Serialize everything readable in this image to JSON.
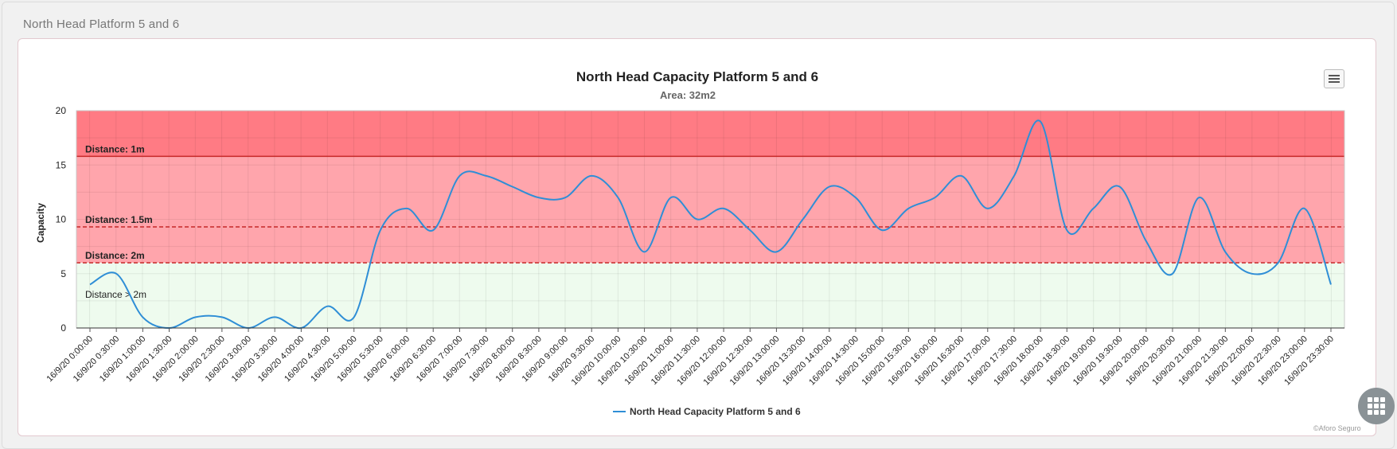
{
  "section_title": "North Head Platform 5 and 6",
  "credit": "©Aforo Seguro",
  "icons": {
    "menu": "hamburger-menu-icon",
    "apps": "grid-apps-icon"
  },
  "colors": {
    "line": "#2f8ed6",
    "zone_above_1m": "#ff7b84",
    "zone_1m_to_2m": "#ffa5ac",
    "zone_safe": "#eefbee",
    "threshold_line": "#c62828"
  },
  "chart_data": {
    "type": "line",
    "title": "North Head Capacity Platform 5 and 6",
    "subtitle": "Area: 32m2",
    "ylabel": "Capacity",
    "xlabel": "",
    "ylim": [
      0,
      20
    ],
    "yticks": [
      0,
      5,
      10,
      15,
      20
    ],
    "grid": true,
    "legend": {
      "placement": "bottom-center"
    },
    "categories": [
      "16/9/20 0:00:00",
      "16/9/20 0:30:00",
      "16/9/20 1:00:00",
      "16/9/20 1:30:00",
      "16/9/20 2:00:00",
      "16/9/20 2:30:00",
      "16/9/20 3:00:00",
      "16/9/20 3:30:00",
      "16/9/20 4:00:00",
      "16/9/20 4:30:00",
      "16/9/20 5:00:00",
      "16/9/20 5:30:00",
      "16/9/20 6:00:00",
      "16/9/20 6:30:00",
      "16/9/20 7:00:00",
      "16/9/20 7:30:00",
      "16/9/20 8:00:00",
      "16/9/20 8:30:00",
      "16/9/20 9:00:00",
      "16/9/20 9:30:00",
      "16/9/20 10:00:00",
      "16/9/20 10:30:00",
      "16/9/20 11:00:00",
      "16/9/20 11:30:00",
      "16/9/20 12:00:00",
      "16/9/20 12:30:00",
      "16/9/20 13:00:00",
      "16/9/20 13:30:00",
      "16/9/20 14:00:00",
      "16/9/20 14:30:00",
      "16/9/20 15:00:00",
      "16/9/20 15:30:00",
      "16/9/20 16:00:00",
      "16/9/20 16:30:00",
      "16/9/20 17:00:00",
      "16/9/20 17:30:00",
      "16/9/20 18:00:00",
      "16/9/20 18:30:00",
      "16/9/20 19:00:00",
      "16/9/20 19:30:00",
      "16/9/20 20:00:00",
      "16/9/20 20:30:00",
      "16/9/20 21:00:00",
      "16/9/20 21:30:00",
      "16/9/20 22:00:00",
      "16/9/20 22:30:00",
      "16/9/20 23:00:00",
      "16/9/20 23:30:00"
    ],
    "series": [
      {
        "name": "North Head Capacity Platform 5 and 6",
        "values": [
          4,
          5,
          1,
          0,
          1,
          1,
          0,
          1,
          0,
          2,
          1,
          9,
          11,
          9,
          14,
          14,
          13,
          12,
          12,
          14,
          12,
          7,
          12,
          10,
          11,
          9,
          7,
          10,
          13,
          12,
          9,
          11,
          12,
          14,
          11,
          14,
          19,
          9,
          11,
          13,
          8,
          5,
          12,
          7,
          5,
          6,
          11,
          4
        ]
      }
    ],
    "bands": [
      {
        "from": 15.8,
        "to": 20,
        "color_key": "zone_above_1m"
      },
      {
        "from": 6,
        "to": 15.8,
        "color_key": "zone_1m_to_2m"
      },
      {
        "from": 0,
        "to": 6,
        "color_key": "zone_safe"
      }
    ],
    "plot_lines": [
      {
        "value": 15.8,
        "label": "Distance: 1m",
        "style": "solid"
      },
      {
        "value": 9.3,
        "label": "Distance: 1.5m",
        "style": "dashed"
      },
      {
        "value": 6,
        "label": "Distance: 2m",
        "style": "dashed"
      }
    ],
    "band_label": {
      "value": 2.8,
      "label": "Distance > 2m"
    }
  }
}
